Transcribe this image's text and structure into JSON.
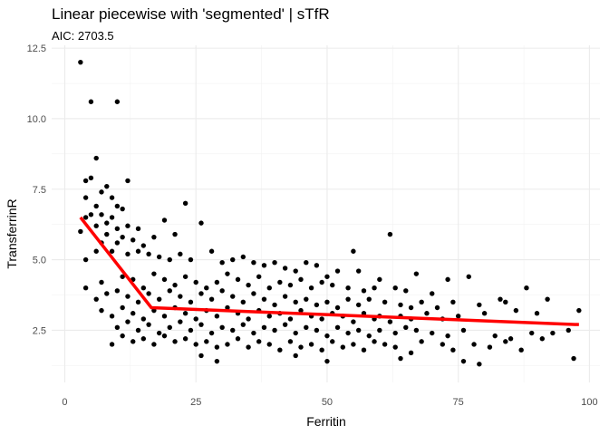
{
  "chart_data": {
    "type": "scatter",
    "title": "Linear piecewise with 'segmented' | sTfR",
    "subtitle": "AIC: 2703.5",
    "xlabel": "Ferritin",
    "ylabel": "TransferrinR",
    "xlim": [
      -2.5,
      102
    ],
    "ylim": [
      0.65,
      12.6
    ],
    "xticks": [
      0,
      25,
      50,
      75,
      100
    ],
    "yticks": [
      2.5,
      5.0,
      7.5,
      10.0,
      12.5
    ],
    "ytick_labels": [
      "2.5",
      "5.0",
      "7.5",
      "10.0",
      "12.5"
    ],
    "grid": true,
    "point_color": "#000000",
    "fit_color": "#ff0000",
    "fit_line": {
      "x": [
        3,
        16.5,
        98
      ],
      "y": [
        6.5,
        3.3,
        2.7
      ]
    },
    "points": [
      [
        3,
        12.0
      ],
      [
        5,
        10.6
      ],
      [
        10,
        10.6
      ],
      [
        6,
        8.6
      ],
      [
        12,
        7.8
      ],
      [
        5,
        7.9
      ],
      [
        4,
        7.8
      ],
      [
        8,
        7.6
      ],
      [
        4,
        7.2
      ],
      [
        7,
        7.4
      ],
      [
        9,
        7.2
      ],
      [
        3,
        6.0
      ],
      [
        5,
        6.6
      ],
      [
        6,
        6.9
      ],
      [
        10,
        6.9
      ],
      [
        11,
        6.8
      ],
      [
        23,
        7.0
      ],
      [
        9,
        6.5
      ],
      [
        7,
        6.6
      ],
      [
        4,
        6.5
      ],
      [
        8,
        6.3
      ],
      [
        12,
        6.2
      ],
      [
        6,
        6.2
      ],
      [
        10,
        6.1
      ],
      [
        14,
        6.1
      ],
      [
        15,
        5.5
      ],
      [
        19,
        6.4
      ],
      [
        26,
        6.3
      ],
      [
        21,
        5.9
      ],
      [
        17,
        5.8
      ],
      [
        8,
        5.9
      ],
      [
        11,
        5.8
      ],
      [
        13,
        5.7
      ],
      [
        7,
        5.6
      ],
      [
        10,
        5.6
      ],
      [
        4,
        5.0
      ],
      [
        6,
        5.3
      ],
      [
        9,
        5.3
      ],
      [
        12,
        5.2
      ],
      [
        14,
        5.3
      ],
      [
        16,
        5.2
      ],
      [
        18,
        5.1
      ],
      [
        20,
        5.0
      ],
      [
        22,
        5.2
      ],
      [
        24,
        5.0
      ],
      [
        28,
        5.3
      ],
      [
        30,
        4.9
      ],
      [
        32,
        5.0
      ],
      [
        34,
        5.1
      ],
      [
        36,
        4.9
      ],
      [
        38,
        4.8
      ],
      [
        40,
        4.9
      ],
      [
        42,
        4.7
      ],
      [
        44,
        4.6
      ],
      [
        46,
        4.9
      ],
      [
        48,
        4.8
      ],
      [
        50,
        4.4
      ],
      [
        52,
        4.6
      ],
      [
        55,
        5.3
      ],
      [
        56,
        4.6
      ],
      [
        62,
        5.9
      ],
      [
        67,
        4.5
      ],
      [
        73,
        4.3
      ],
      [
        77,
        4.4
      ],
      [
        4,
        4.0
      ],
      [
        7,
        4.2
      ],
      [
        11,
        4.4
      ],
      [
        13,
        4.3
      ],
      [
        15,
        4.0
      ],
      [
        17,
        4.5
      ],
      [
        19,
        4.3
      ],
      [
        21,
        4.1
      ],
      [
        23,
        4.4
      ],
      [
        25,
        4.2
      ],
      [
        27,
        4.0
      ],
      [
        29,
        4.2
      ],
      [
        31,
        4.5
      ],
      [
        33,
        4.3
      ],
      [
        35,
        4.1
      ],
      [
        37,
        4.4
      ],
      [
        39,
        4.0
      ],
      [
        41,
        4.2
      ],
      [
        43,
        4.1
      ],
      [
        45,
        4.3
      ],
      [
        47,
        4.0
      ],
      [
        49,
        4.2
      ],
      [
        51,
        4.1
      ],
      [
        54,
        4.0
      ],
      [
        57,
        3.9
      ],
      [
        59,
        4.0
      ],
      [
        60,
        4.3
      ],
      [
        63,
        4.0
      ],
      [
        65,
        3.9
      ],
      [
        70,
        3.8
      ],
      [
        88,
        4.0
      ],
      [
        6,
        3.6
      ],
      [
        8,
        3.8
      ],
      [
        10,
        3.9
      ],
      [
        12,
        3.7
      ],
      [
        14,
        3.5
      ],
      [
        16,
        3.8
      ],
      [
        18,
        3.6
      ],
      [
        20,
        3.9
      ],
      [
        22,
        3.7
      ],
      [
        24,
        3.5
      ],
      [
        26,
        3.8
      ],
      [
        28,
        3.6
      ],
      [
        30,
        3.9
      ],
      [
        32,
        3.7
      ],
      [
        34,
        3.5
      ],
      [
        36,
        3.8
      ],
      [
        38,
        3.6
      ],
      [
        40,
        3.4
      ],
      [
        42,
        3.7
      ],
      [
        44,
        3.5
      ],
      [
        46,
        3.6
      ],
      [
        48,
        3.4
      ],
      [
        50,
        3.5
      ],
      [
        52,
        3.3
      ],
      [
        54,
        3.6
      ],
      [
        56,
        3.4
      ],
      [
        58,
        3.6
      ],
      [
        61,
        3.5
      ],
      [
        64,
        3.4
      ],
      [
        66,
        3.3
      ],
      [
        68,
        3.5
      ],
      [
        71,
        3.3
      ],
      [
        74,
        3.5
      ],
      [
        79,
        3.4
      ],
      [
        83,
        3.6
      ],
      [
        84,
        3.5
      ],
      [
        92,
        3.6
      ],
      [
        98,
        3.2
      ],
      [
        7,
        3.2
      ],
      [
        9,
        3.0
      ],
      [
        11,
        3.3
      ],
      [
        13,
        3.1
      ],
      [
        15,
        2.9
      ],
      [
        17,
        3.2
      ],
      [
        19,
        3.0
      ],
      [
        21,
        3.3
      ],
      [
        23,
        3.1
      ],
      [
        25,
        2.9
      ],
      [
        27,
        3.2
      ],
      [
        29,
        3.0
      ],
      [
        31,
        3.3
      ],
      [
        33,
        3.1
      ],
      [
        35,
        2.9
      ],
      [
        37,
        3.2
      ],
      [
        39,
        3.0
      ],
      [
        41,
        3.1
      ],
      [
        43,
        2.9
      ],
      [
        45,
        3.2
      ],
      [
        47,
        3.0
      ],
      [
        49,
        2.9
      ],
      [
        51,
        3.1
      ],
      [
        53,
        3.0
      ],
      [
        55,
        2.8
      ],
      [
        57,
        3.1
      ],
      [
        59,
        2.9
      ],
      [
        60,
        3.0
      ],
      [
        62,
        2.8
      ],
      [
        64,
        3.0
      ],
      [
        66,
        2.9
      ],
      [
        69,
        3.1
      ],
      [
        72,
        2.9
      ],
      [
        75,
        3.0
      ],
      [
        80,
        3.1
      ],
      [
        86,
        3.2
      ],
      [
        90,
        3.1
      ],
      [
        10,
        2.6
      ],
      [
        12,
        2.8
      ],
      [
        14,
        2.5
      ],
      [
        16,
        2.7
      ],
      [
        18,
        2.4
      ],
      [
        20,
        2.6
      ],
      [
        22,
        2.8
      ],
      [
        24,
        2.5
      ],
      [
        26,
        2.7
      ],
      [
        28,
        2.4
      ],
      [
        30,
        2.6
      ],
      [
        32,
        2.5
      ],
      [
        34,
        2.7
      ],
      [
        36,
        2.4
      ],
      [
        38,
        2.6
      ],
      [
        40,
        2.5
      ],
      [
        42,
        2.7
      ],
      [
        44,
        2.4
      ],
      [
        46,
        2.6
      ],
      [
        48,
        2.5
      ],
      [
        50,
        2.3
      ],
      [
        52,
        2.6
      ],
      [
        54,
        2.4
      ],
      [
        56,
        2.5
      ],
      [
        58,
        2.3
      ],
      [
        60,
        2.5
      ],
      [
        63,
        2.4
      ],
      [
        65,
        2.6
      ],
      [
        67,
        2.5
      ],
      [
        70,
        2.4
      ],
      [
        73,
        2.3
      ],
      [
        76,
        2.5
      ],
      [
        82,
        2.3
      ],
      [
        85,
        2.2
      ],
      [
        89,
        2.4
      ],
      [
        93,
        2.4
      ],
      [
        96,
        2.5
      ],
      [
        9,
        2.0
      ],
      [
        11,
        2.3
      ],
      [
        13,
        2.1
      ],
      [
        15,
        2.2
      ],
      [
        17,
        2.0
      ],
      [
        19,
        2.3
      ],
      [
        21,
        2.1
      ],
      [
        23,
        2.2
      ],
      [
        25,
        2.0
      ],
      [
        27,
        2.1
      ],
      [
        29,
        1.9
      ],
      [
        31,
        2.0
      ],
      [
        33,
        2.2
      ],
      [
        35,
        1.9
      ],
      [
        37,
        2.1
      ],
      [
        39,
        2.0
      ],
      [
        41,
        1.8
      ],
      [
        43,
        2.1
      ],
      [
        45,
        1.9
      ],
      [
        47,
        2.0
      ],
      [
        49,
        1.8
      ],
      [
        51,
        2.1
      ],
      [
        53,
        1.9
      ],
      [
        55,
        2.0
      ],
      [
        57,
        1.8
      ],
      [
        59,
        2.1
      ],
      [
        61,
        2.0
      ],
      [
        63,
        1.9
      ],
      [
        66,
        1.7
      ],
      [
        68,
        2.1
      ],
      [
        72,
        2.0
      ],
      [
        74,
        1.8
      ],
      [
        78,
        2.0
      ],
      [
        81,
        1.9
      ],
      [
        84,
        2.1
      ],
      [
        87,
        1.8
      ],
      [
        91,
        2.2
      ],
      [
        26,
        1.6
      ],
      [
        29,
        1.4
      ],
      [
        44,
        1.6
      ],
      [
        50,
        1.4
      ],
      [
        64,
        1.5
      ],
      [
        76,
        1.4
      ],
      [
        79,
        1.3
      ],
      [
        97,
        1.5
      ]
    ]
  }
}
